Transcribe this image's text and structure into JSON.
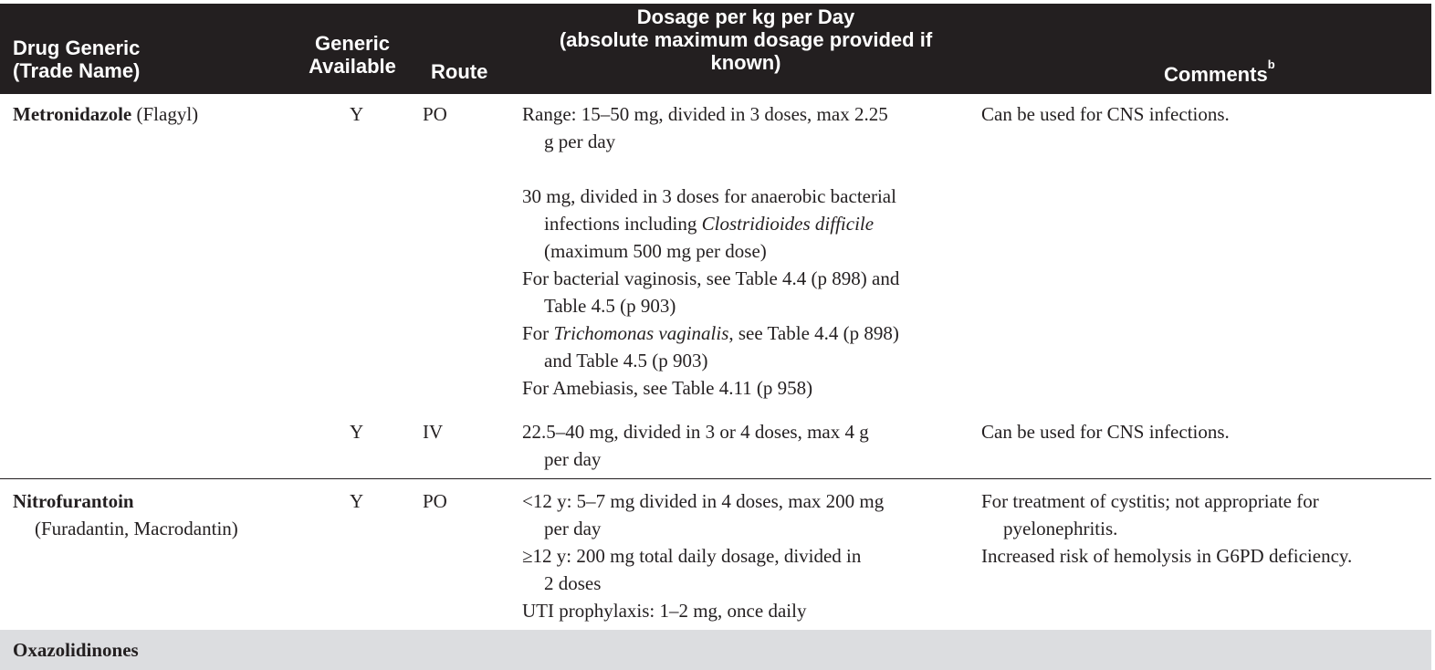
{
  "header": {
    "col_drug_1": "Drug Generic",
    "col_drug_2": "(Trade Name)",
    "col_generic_1": "Generic",
    "col_generic_2": "Available",
    "col_route": "Route",
    "col_dosage_1": "Dosage per kg per Day",
    "col_dosage_2": "(absolute maximum dosage provided if",
    "col_dosage_3": "known)",
    "col_comments": "Comments",
    "col_comments_sup": "b"
  },
  "rows": [
    {
      "drug": "Metronidazole",
      "trade": "(Flagyl)",
      "generic": "Y",
      "route": "PO",
      "dose_1a": "Range: 15–50 mg, divided in 3 doses, max 2.25",
      "dose_1b": "g per day",
      "dose_2a": "30 mg, divided in 3 doses for anaerobic bacterial",
      "dose_2b": "infections including",
      "dose_2c": "Clostridioides difficile",
      "dose_2d": "(maximum 500 mg per dose)",
      "dose_3a": "For bacterial vaginosis, see Table 4.4 (p 898) and",
      "dose_3b": "Table 4.5 (p 903)",
      "dose_4a": "For",
      "dose_4b": "Trichomonas vaginalis",
      "dose_4c": ", see Table 4.4 (p 898)",
      "dose_4d": "and Table 4.5 (p 903)",
      "dose_5": "For Amebiasis, see Table 4.11 (p 958)",
      "comment": "Can be used for CNS infections."
    },
    {
      "generic": "Y",
      "route": "IV",
      "dose_1a": "22.5–40 mg, divided in 3 or 4 doses, max 4 g",
      "dose_1b": "per day",
      "comment": "Can be used for CNS infections."
    },
    {
      "drug": "Nitrofurantoin",
      "trade": "(Furadantin, Macrodantin)",
      "generic": "Y",
      "route": "PO",
      "dose_1a": "<12 y: 5–7 mg divided in 4 doses, max 200 mg",
      "dose_1b": "per day",
      "dose_2a": "≥12 y: 200 mg total daily dosage, divided in",
      "dose_2b": "2 doses",
      "dose_3": "UTI prophylaxis: 1–2 mg, once daily",
      "comment_1a": "For treatment of cystitis; not appropriate for",
      "comment_1b": "pyelonephritis.",
      "comment_2": "Increased risk of hemolysis in G6PD deficiency."
    }
  ],
  "section": "Oxazolidinones"
}
